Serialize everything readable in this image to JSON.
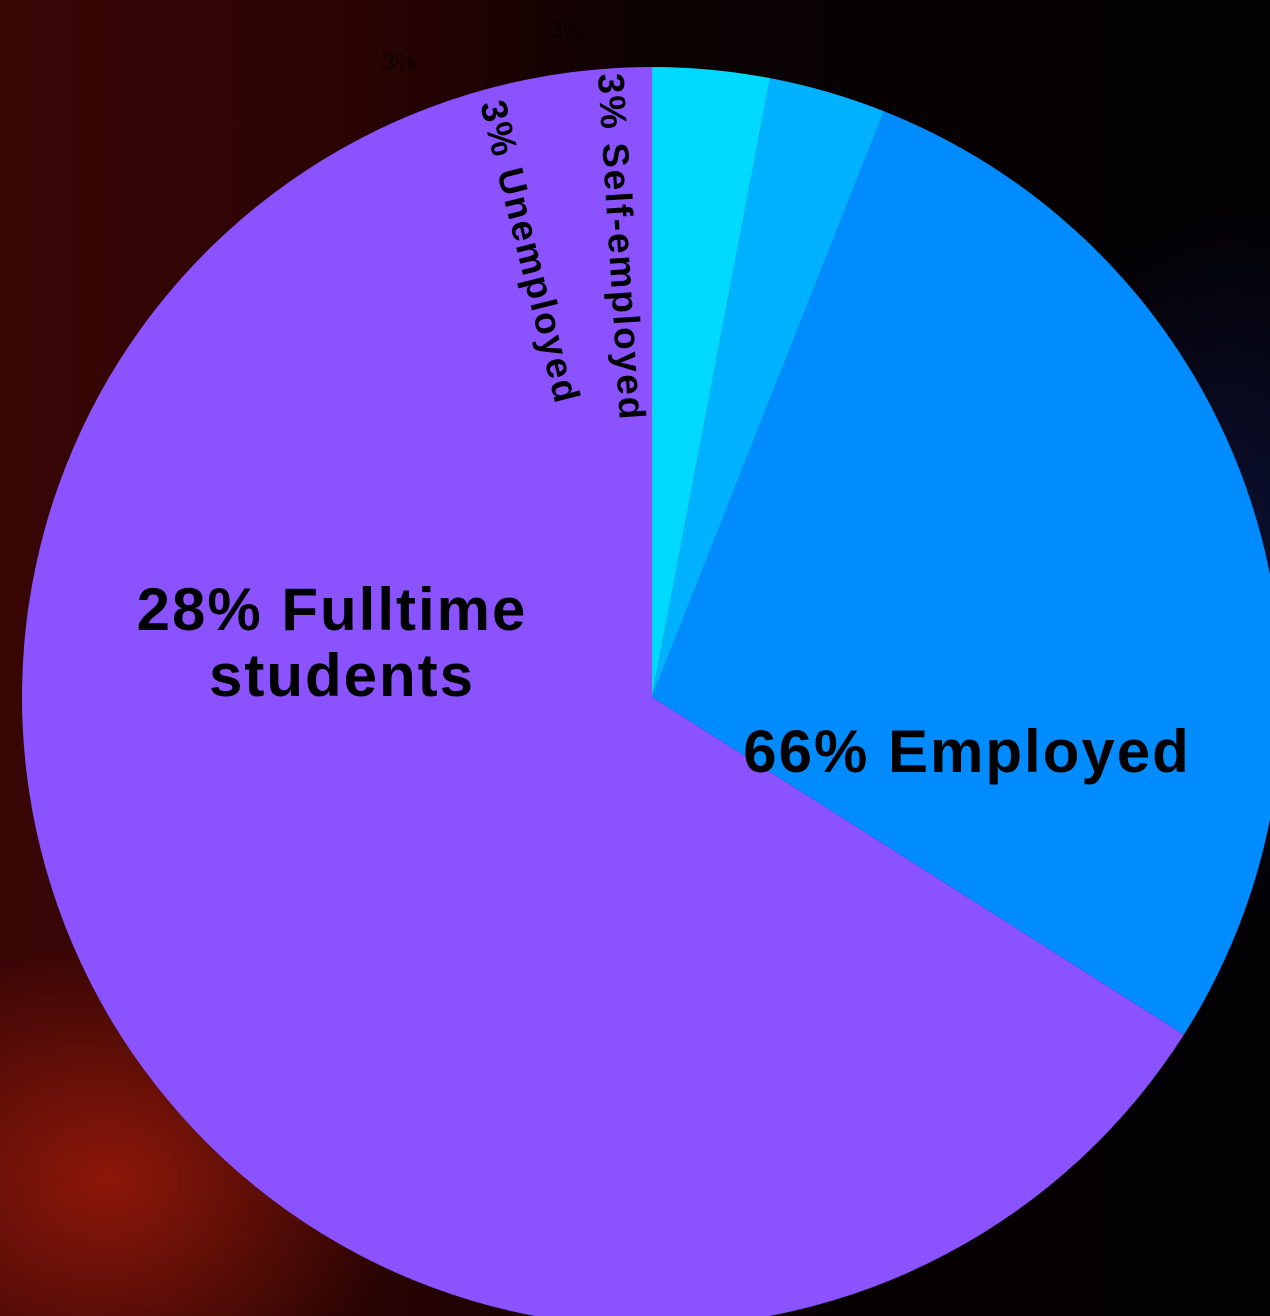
{
  "chart_data": {
    "type": "pie",
    "slices": [
      {
        "label": "Employed",
        "value": 66,
        "pct_label": "66%",
        "color": "#8b53ff"
      },
      {
        "label": "Fulltime students",
        "value": 28,
        "pct_label": "28%",
        "color": "#008cff"
      },
      {
        "label": "Unemployed",
        "value": 3,
        "pct_label": "3%",
        "color": "#00b1ff"
      },
      {
        "label": "Self-employed",
        "value": 3,
        "pct_label": "3%",
        "color": "#00d9ff"
      }
    ],
    "inner_labels": {
      "employed": "66% Employed",
      "students_line1": "28% Fulltime",
      "students_line2": "students",
      "unemployed": "3% Unemployed",
      "self_employed": "3% Self-employed"
    },
    "outer_labels": {
      "unemployed": "3%",
      "self_employed": "3%"
    },
    "start": "top",
    "direction": "clockwise"
  }
}
